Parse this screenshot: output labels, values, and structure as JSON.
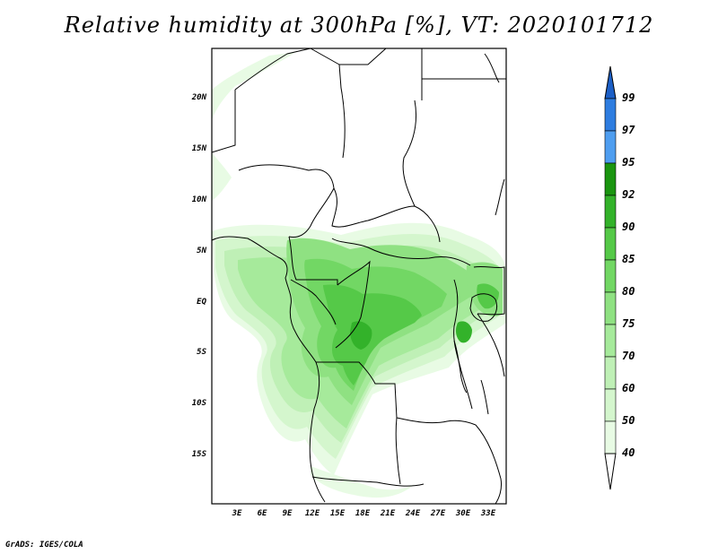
{
  "title": "Relative humidity at 300hPa [%], VT: 2020101712",
  "credit": "GrADS: IGES/COLA",
  "map": {
    "lat_labels": [
      "20N",
      "15N",
      "10N",
      "5N",
      "EQ",
      "5S",
      "10S",
      "15S"
    ],
    "lon_labels": [
      "3E",
      "6E",
      "9E",
      "12E",
      "15E",
      "18E",
      "21E",
      "24E",
      "27E",
      "30E",
      "33E"
    ],
    "extent": {
      "lon_min": 0,
      "lon_max": 35,
      "lat_min": -20,
      "lat_max": 25
    }
  },
  "colorbar": {
    "levels": [
      "99",
      "97",
      "95",
      "92",
      "90",
      "85",
      "80",
      "75",
      "70",
      "60",
      "50",
      "40"
    ],
    "colors": {
      "c40_50": "#e8fbe4",
      "c50_60": "#d4f6cd",
      "c60_70": "#bff0b6",
      "c70_75": "#a6ea9b",
      "c75_80": "#8fe182",
      "c80_85": "#72d764",
      "c85_90": "#55c948",
      "c90_92": "#33b22a",
      "c92_95": "#1a9510",
      "c95_97": "#4f9ef0",
      "c97_99": "#2e7de0",
      "c99_up": "#1c5fc6"
    }
  }
}
